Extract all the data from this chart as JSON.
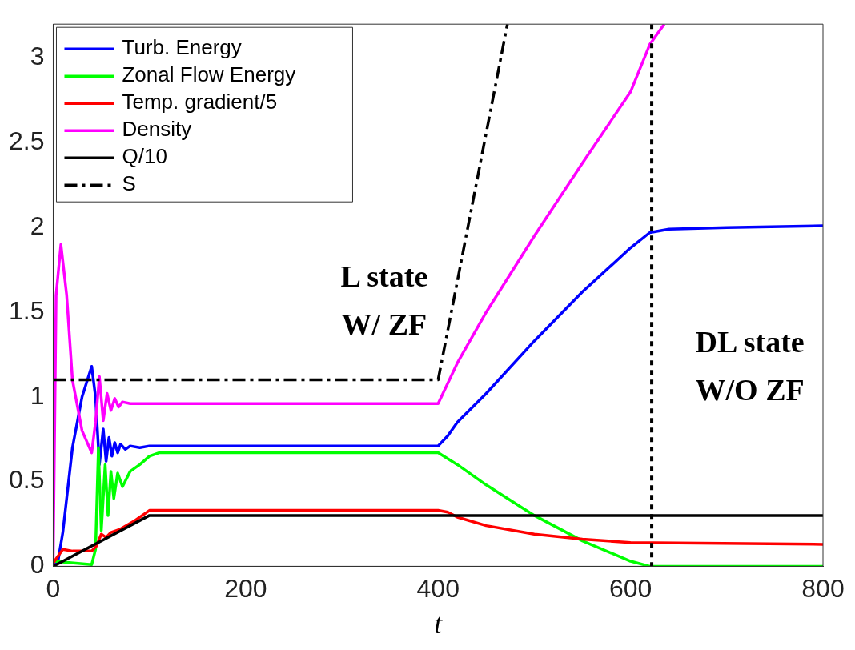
{
  "chart_data": {
    "type": "line",
    "xlabel": "t",
    "xlim": [
      0,
      800
    ],
    "ylim": [
      0,
      3.2
    ],
    "xticks": [
      0,
      200,
      400,
      600,
      800
    ],
    "yticks": [
      0,
      0.5,
      1,
      1.5,
      2,
      2.5,
      3
    ],
    "grid": false,
    "legend": "top left",
    "marker": "none",
    "series": [
      {
        "name": "Turb. Energy",
        "color": "#0000ff",
        "x": [
          0,
          5,
          10,
          20,
          30,
          40,
          44,
          48,
          52,
          55,
          58,
          61,
          64,
          67,
          70,
          75,
          80,
          90,
          100,
          400,
          410,
          420,
          450,
          500,
          550,
          600,
          620,
          640,
          700,
          800
        ],
        "values": [
          0,
          0.03,
          0.2,
          0.7,
          1.0,
          1.18,
          1.0,
          0.6,
          0.81,
          0.62,
          0.76,
          0.65,
          0.73,
          0.67,
          0.72,
          0.69,
          0.71,
          0.7,
          0.71,
          0.71,
          0.77,
          0.85,
          1.02,
          1.33,
          1.62,
          1.88,
          1.97,
          1.99,
          2.0,
          2.01
        ]
      },
      {
        "name": "Zonal Flow Energy",
        "color": "#00ff00",
        "x": [
          0,
          40,
          44,
          47,
          50,
          54,
          57,
          60,
          63,
          67,
          72,
          80,
          90,
          100,
          110,
          400,
          420,
          450,
          500,
          550,
          600,
          620,
          800
        ],
        "values": [
          0.03,
          0.01,
          0.1,
          0.7,
          0.21,
          0.6,
          0.3,
          0.56,
          0.4,
          0.55,
          0.47,
          0.56,
          0.6,
          0.65,
          0.67,
          0.67,
          0.6,
          0.48,
          0.3,
          0.15,
          0.03,
          0,
          0
        ]
      },
      {
        "name": "Temp. gradient/5",
        "color": "#ff0000",
        "x": [
          0,
          10,
          20,
          40,
          45,
          50,
          55,
          60,
          70,
          85,
          100,
          400,
          410,
          420,
          450,
          500,
          550,
          600,
          800
        ],
        "values": [
          0.02,
          0.1,
          0.09,
          0.09,
          0.12,
          0.19,
          0.17,
          0.2,
          0.22,
          0.27,
          0.33,
          0.33,
          0.32,
          0.29,
          0.24,
          0.19,
          0.16,
          0.14,
          0.13
        ]
      },
      {
        "name": "Density",
        "color": "#ff00ff",
        "x": [
          0,
          3,
          8,
          14,
          20,
          30,
          40,
          44,
          48,
          52,
          56,
          60,
          64,
          68,
          72,
          80,
          100,
          400,
          420,
          450,
          500,
          550,
          600,
          620,
          635
        ],
        "values": [
          0.05,
          1.6,
          1.9,
          1.6,
          1.1,
          0.8,
          0.67,
          0.85,
          1.12,
          0.86,
          1.02,
          0.92,
          0.99,
          0.94,
          0.97,
          0.96,
          0.96,
          0.96,
          1.2,
          1.5,
          1.95,
          2.38,
          2.8,
          3.08,
          3.2
        ]
      },
      {
        "name": "Q/10",
        "color": "#000000",
        "x": [
          0,
          100,
          800
        ],
        "values": [
          0,
          0.3,
          0.3
        ]
      },
      {
        "name": "S",
        "color": "#000000",
        "line_style": "dashdot",
        "x": [
          0,
          400,
          472
        ],
        "values": [
          1.1,
          1.1,
          3.2
        ]
      }
    ],
    "ref_lines": [
      {
        "axis": "x",
        "value": 622,
        "color": "#000000",
        "line_style": "dotted"
      }
    ],
    "annotations": [
      "L state\nW/ ZF",
      "DL state\nW/O ZF"
    ]
  }
}
